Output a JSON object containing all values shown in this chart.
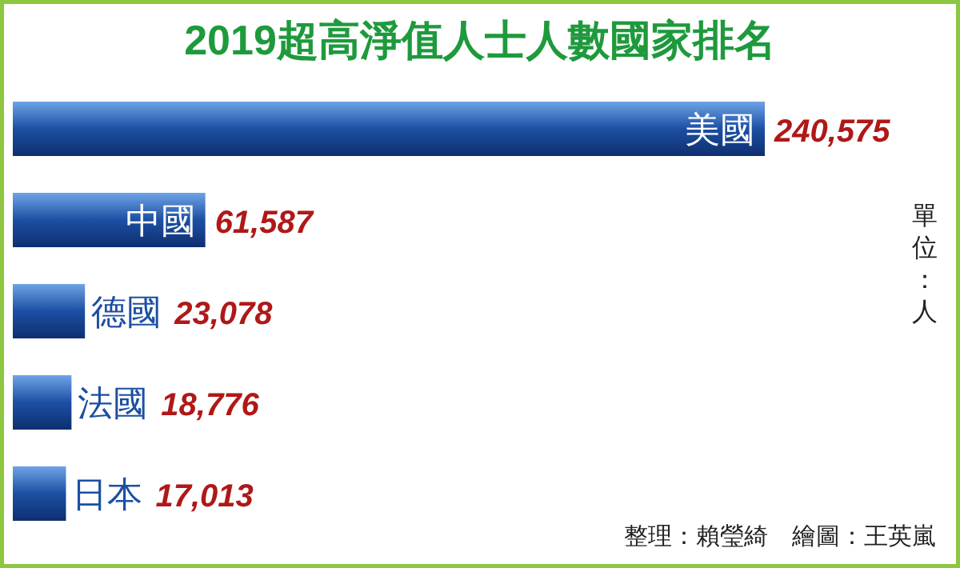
{
  "chart_data": {
    "type": "bar",
    "orientation": "horizontal",
    "title": "2019超高淨值人士人數國家排名",
    "categories": [
      "美國",
      "中國",
      "德國",
      "法國",
      "日本"
    ],
    "values": [
      240575,
      61587,
      23078,
      18776,
      17013
    ],
    "color": "#1c4fa3",
    "value_labels": [
      "240,575",
      "61,587",
      "23,078",
      "18,776",
      "17,013"
    ],
    "annotations": [
      "單位：人",
      "整理：賴瑩綺　繪圖：王英嵐"
    ]
  }
}
